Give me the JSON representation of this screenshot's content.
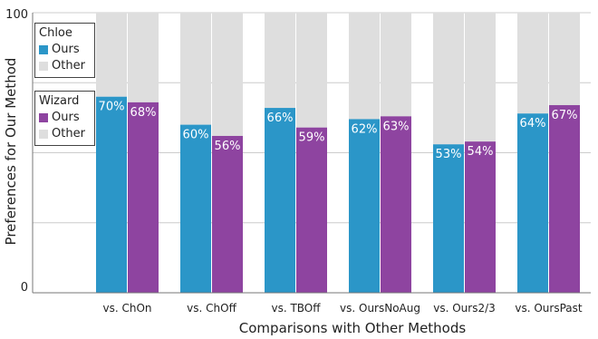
{
  "chart_data": {
    "type": "bar",
    "stacked_to": 100,
    "xlabel": "Comparisons with Other Methods",
    "ylabel": "Preferences for Our  Method",
    "ylim": [
      0,
      100
    ],
    "yticks": [
      "0",
      "100"
    ],
    "grid": true,
    "categories": [
      "vs. ChOn",
      "vs. ChOff",
      "vs. TBOff",
      "vs. OursNoAug",
      "vs. Ours2/3",
      "vs. OursPast"
    ],
    "series": [
      {
        "group": "Chloe",
        "name": "Ours",
        "color": "#2b96c8",
        "values": [
          70,
          60,
          66,
          62,
          53,
          64
        ],
        "labels": [
          "70%",
          "60%",
          "66%",
          "62%",
          "53%",
          "64%"
        ]
      },
      {
        "group": "Wizard",
        "name": "Ours",
        "color": "#8e44a0",
        "values": [
          68,
          56,
          59,
          63,
          54,
          67
        ],
        "labels": [
          "68%",
          "56%",
          "59%",
          "63%",
          "54%",
          "67%"
        ]
      }
    ],
    "remainder": {
      "name": "Other",
      "color": "#dedede"
    },
    "legend": [
      {
        "title": "Chloe",
        "items": [
          {
            "label": "Ours",
            "color": "#2b96c8"
          },
          {
            "label": "Other",
            "color": "#dedede"
          }
        ]
      },
      {
        "title": "Wizard",
        "items": [
          {
            "label": "Ours",
            "color": "#8e44a0"
          },
          {
            "label": "Other",
            "color": "#dedede"
          }
        ]
      }
    ],
    "legend_placement": "left"
  }
}
